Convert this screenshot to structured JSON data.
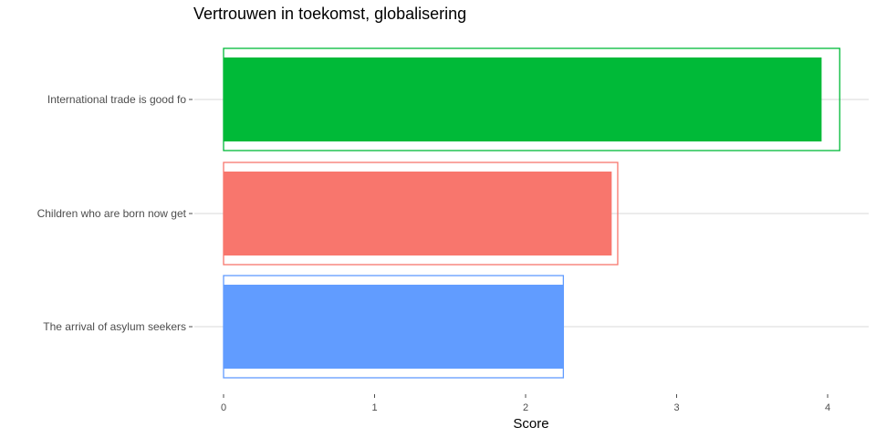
{
  "chart_data": {
    "type": "bar",
    "orientation": "horizontal",
    "title": "Vertrouwen in toekomst, globalisering",
    "xlabel": "Score",
    "ylabel": "",
    "xlim": [
      0,
      4.2
    ],
    "x_ticks": [
      "0",
      "1",
      "2",
      "3",
      "4"
    ],
    "categories": [
      "International trade is good fo",
      "Children who are born now get",
      "The arrival of asylum seekers"
    ],
    "values": [
      3.96,
      2.57,
      2.25
    ],
    "outline_values": [
      4.08,
      2.61,
      2.25
    ],
    "colors": [
      "#00BA38",
      "#F8766D",
      "#619CFF"
    ],
    "grid": true,
    "legend": "none"
  }
}
